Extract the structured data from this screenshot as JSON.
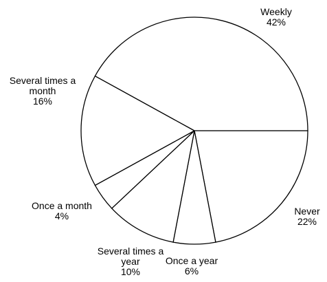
{
  "chart_data": {
    "type": "pie",
    "categories": [
      "Never",
      "Once a year",
      "Several times a year",
      "Once a month",
      "Several times a month",
      "Weekly"
    ],
    "values": [
      22,
      6,
      10,
      4,
      16,
      42
    ],
    "value_labels": [
      "22%",
      "6%",
      "10%",
      "4%",
      "16%",
      "42%"
    ],
    "color": "#ffffff"
  }
}
